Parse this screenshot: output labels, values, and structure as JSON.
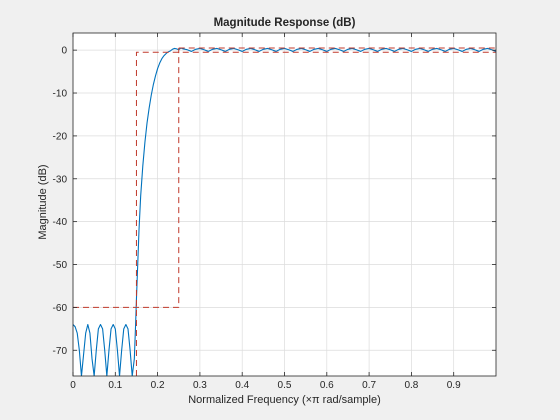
{
  "colors": {
    "figure_bg": "#f0f0f0",
    "axes_bg": "#ffffff",
    "grid": "#dcdcdc",
    "axis": "#262626",
    "response": "#0072bd",
    "mask": "#c0392b"
  },
  "chart_data": {
    "type": "line",
    "title": "Magnitude Response (dB)",
    "xlabel": "Normalized Frequency (×π rad/sample)",
    "ylabel": "Magnitude (dB)",
    "xlim": [
      0,
      1
    ],
    "ylim": [
      -76,
      4
    ],
    "grid": true,
    "x_ticks": [
      0,
      0.1,
      0.2,
      0.3,
      0.4,
      0.5,
      0.6,
      0.7,
      0.8,
      0.9
    ],
    "x_tick_labels": [
      "0",
      "0.1",
      "0.2",
      "0.3",
      "0.4",
      "0.5",
      "0.6",
      "0.7",
      "0.8",
      "0.9"
    ],
    "y_ticks": [
      0,
      -10,
      -20,
      -30,
      -40,
      -50,
      -60,
      -70
    ],
    "y_tick_labels": [
      "0",
      "-10",
      "-20",
      "-30",
      "-40",
      "-50",
      "-60",
      "-70"
    ],
    "series": [
      {
        "role": "magnitude response",
        "style": "solid",
        "color": "#0072bd",
        "x": [
          0,
          0.005,
          0.01,
          0.015,
          0.02,
          0.025,
          0.03,
          0.035,
          0.04,
          0.045,
          0.05,
          0.055,
          0.06,
          0.065,
          0.07,
          0.075,
          0.08,
          0.085,
          0.09,
          0.095,
          0.1,
          0.105,
          0.11,
          0.115,
          0.12,
          0.125,
          0.13,
          0.135,
          0.14,
          0.145,
          0.148,
          0.15,
          0.153,
          0.156,
          0.16,
          0.165,
          0.17,
          0.175,
          0.18,
          0.185,
          0.19,
          0.195,
          0.2,
          0.205,
          0.21,
          0.215,
          0.22,
          0.225,
          0.23,
          0.235,
          0.24,
          0.245,
          0.25,
          0.255,
          0.26,
          0.27,
          0.28,
          0.29,
          0.3,
          0.31,
          0.32,
          0.33,
          0.34,
          0.35,
          0.36,
          0.37,
          0.38,
          0.39,
          0.4,
          0.41,
          0.42,
          0.43,
          0.44,
          0.45,
          0.46,
          0.47,
          0.48,
          0.49,
          0.5,
          0.51,
          0.52,
          0.53,
          0.54,
          0.55,
          0.56,
          0.57,
          0.58,
          0.59,
          0.6,
          0.61,
          0.62,
          0.63,
          0.64,
          0.65,
          0.66,
          0.67,
          0.68,
          0.69,
          0.7,
          0.71,
          0.72,
          0.73,
          0.74,
          0.75,
          0.76,
          0.77,
          0.78,
          0.79,
          0.8,
          0.81,
          0.82,
          0.83,
          0.84,
          0.85,
          0.86,
          0.87,
          0.88,
          0.89,
          0.9,
          0.91,
          0.92,
          0.93,
          0.94,
          0.95,
          0.96,
          0.97,
          0.98,
          0.99,
          1.0
        ],
        "y": [
          -64,
          -64.5,
          -66,
          -70,
          -76,
          -71,
          -66,
          -64,
          -66,
          -72,
          -76,
          -70,
          -65,
          -64,
          -65,
          -70,
          -76,
          -70,
          -65,
          -64,
          -65,
          -70,
          -76,
          -70,
          -65,
          -64,
          -65,
          -70,
          -76,
          -72,
          -64,
          -58,
          -50,
          -42,
          -34,
          -27,
          -21.5,
          -17,
          -13.5,
          -10.5,
          -8,
          -6,
          -4.3,
          -3,
          -2,
          -1.3,
          -0.8,
          -0.4,
          -0.2,
          0.2,
          0.4,
          0.3,
          0.1,
          0.5,
          0.3,
          0.1,
          -0.3,
          0.2,
          0.4,
          0.1,
          -0.3,
          0.2,
          0.4,
          0.1,
          -0.3,
          0.2,
          0.4,
          0.1,
          -0.3,
          0.2,
          0.4,
          0.1,
          -0.3,
          0.2,
          0.4,
          0.1,
          -0.3,
          0.2,
          0.4,
          0.1,
          -0.3,
          0.2,
          0.4,
          0.1,
          -0.3,
          0.2,
          0.4,
          0.1,
          -0.3,
          0.2,
          0.4,
          0.1,
          -0.3,
          0.2,
          0.4,
          0.1,
          -0.3,
          0.2,
          0.4,
          0.1,
          -0.3,
          0.2,
          0.4,
          0.1,
          -0.3,
          0.2,
          0.4,
          0.1,
          -0.3,
          0.2,
          0.4,
          0.1,
          -0.3,
          0.2,
          0.4,
          0.1,
          -0.3,
          0.2,
          0.4,
          0.1,
          -0.3,
          0.2,
          0.4,
          0.1,
          -0.3,
          0.2,
          0.4,
          0.1,
          -0.3
        ]
      },
      {
        "role": "stopband mask",
        "style": "dashed",
        "color": "#c0392b",
        "x": [
          0,
          0.25,
          0.25
        ],
        "y": [
          -60,
          -60,
          0.5
        ]
      },
      {
        "role": "passband mask",
        "style": "dashed",
        "color": "#c0392b",
        "x": [
          0.15,
          0.15,
          0.25,
          1.0
        ],
        "y": [
          -76,
          -0.5,
          -0.5,
          -0.5
        ]
      },
      {
        "role": "passband upper limit",
        "style": "dashed",
        "color": "#c0392b",
        "x": [
          0.25,
          1.0
        ],
        "y": [
          0.5,
          0.5
        ]
      }
    ]
  }
}
